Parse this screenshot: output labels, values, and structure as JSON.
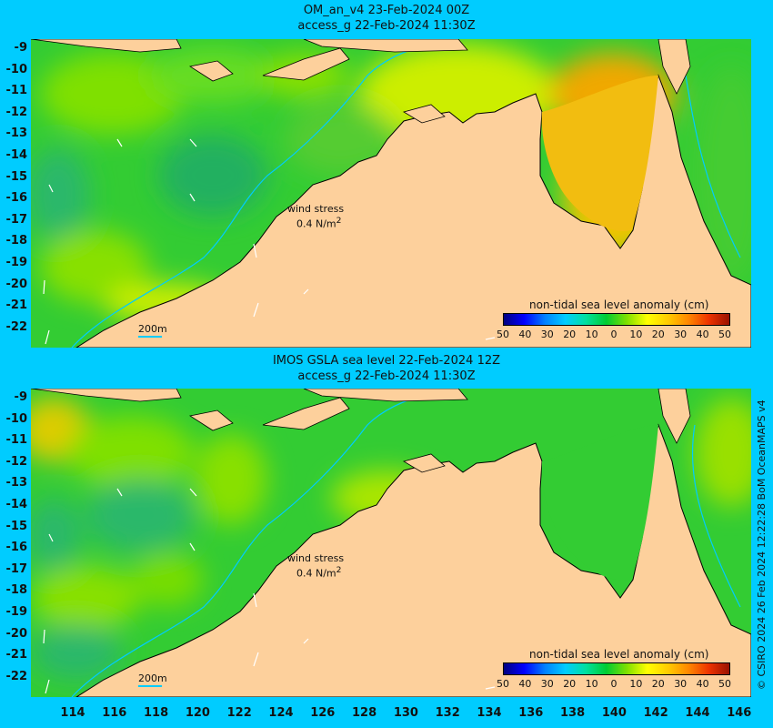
{
  "top_panel": {
    "title_line1": "OM_an_v4  23-Feb-2024 00Z",
    "title_line2": "access_g 22-Feb-2024 11:30Z",
    "wind_label": "wind stress",
    "wind_value": "0.4 N/m",
    "wind_sup": "2",
    "scale_label": "200m",
    "colorbar_title": "non-tidal sea level anomaly (cm)"
  },
  "bottom_panel": {
    "title_line1": "IMOS GSLA sea level  22-Feb-2024 12Z",
    "title_line2": "access_g 22-Feb-2024 11:30Z",
    "wind_label": "wind stress",
    "wind_value": "0.4 N/m",
    "wind_sup": "2",
    "scale_label": "200m",
    "colorbar_title": "non-tidal sea level anomaly (cm)"
  },
  "colorbar_ticks": [
    "50",
    "40",
    "30",
    "20",
    "10",
    "0",
    "10",
    "20",
    "30",
    "40",
    "50"
  ],
  "y_axis_labels": [
    "-9",
    "-10",
    "-11",
    "-12",
    "-13",
    "-14",
    "-15",
    "-16",
    "-17",
    "-18",
    "-19",
    "-20",
    "-21",
    "-22"
  ],
  "x_axis_labels": [
    "114",
    "116",
    "118",
    "120",
    "122",
    "124",
    "126",
    "128",
    "130",
    "132",
    "134",
    "136",
    "138",
    "140",
    "142",
    "144",
    "146"
  ],
  "credit": "© CSIRO 2024   26 Feb 2024 12:22:28 BoM OceanMAPS v4",
  "colors": {
    "background": "#00ccff",
    "land": "#fdd09c",
    "sea_green": "#33cc33",
    "sea_yellow": "#f0c000",
    "isobath": "#00ccff"
  }
}
